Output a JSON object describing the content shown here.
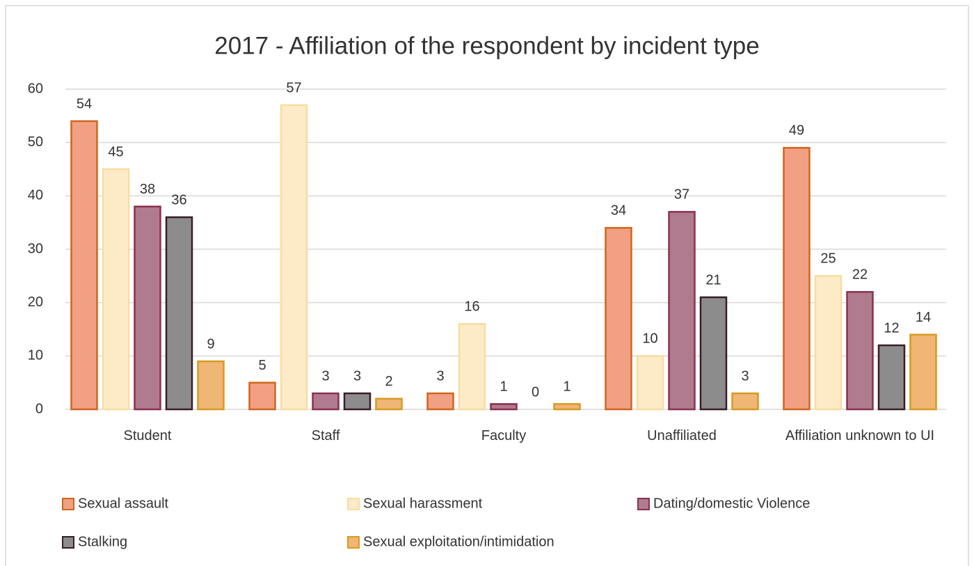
{
  "chart_data": {
    "type": "bar",
    "title": "2017 - Affiliation of the respondent by incident type",
    "categories": [
      "Student",
      "Staff",
      "Faculty",
      "Unaffiliated",
      "Affiliation unknown to UI"
    ],
    "series": [
      {
        "name": "Sexual assault",
        "color": "#f2a083",
        "edgecolor": "#d0661c",
        "values": [
          54,
          5,
          3,
          34,
          49
        ]
      },
      {
        "name": "Sexual harassment",
        "color": "#fdebc8",
        "edgecolor": "#f9dca0",
        "values": [
          45,
          57,
          16,
          10,
          25
        ]
      },
      {
        "name": "Dating/domestic Violence",
        "color": "#b07b8e",
        "edgecolor": "#8c3050",
        "values": [
          38,
          3,
          1,
          37,
          22
        ]
      },
      {
        "name": "Stalking",
        "color": "#8c8c8c",
        "edgecolor": "#3a1d26",
        "values": [
          36,
          3,
          0,
          21,
          12
        ]
      },
      {
        "name": "Sexual exploitation/intimidation",
        "color": "#f0b676",
        "edgecolor": "#d79a22",
        "values": [
          9,
          2,
          1,
          3,
          14
        ]
      }
    ],
    "ylim": [
      0,
      60
    ],
    "yticks": [
      0,
      10,
      20,
      30,
      40,
      50,
      60
    ],
    "grid": true,
    "legend": "bottom"
  }
}
